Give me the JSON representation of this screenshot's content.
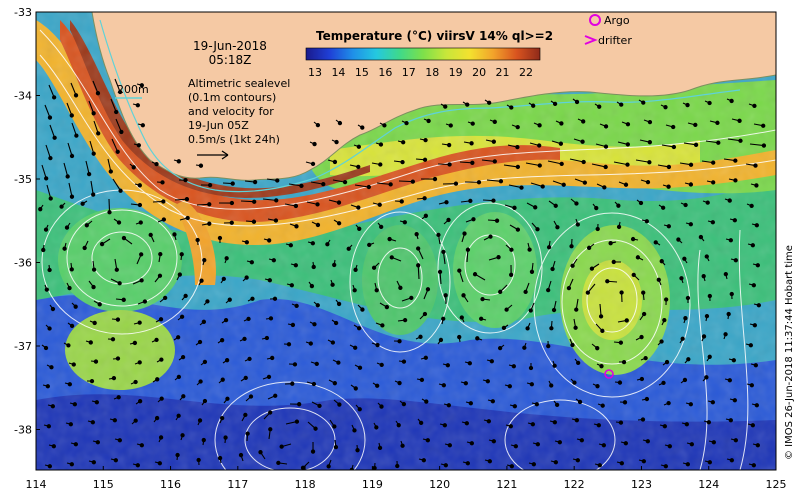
{
  "title": "Temperature (°C) viirsV 14% ql>=2",
  "datetime": {
    "date": "19-Jun-2018",
    "time": "05:18Z"
  },
  "depth_contour_label": "200m",
  "annotation_lines": [
    "Altimetric sealevel",
    "(0.1m contours)",
    "and velocity for",
    "19-Jun 05Z",
    "0.5m/s (1kt 24h)"
  ],
  "legend": {
    "argo_label": "Argo",
    "drifter_label": "drifter"
  },
  "colorbar": {
    "ticks": [
      "13",
      "14",
      "15",
      "16",
      "17",
      "18",
      "19",
      "20",
      "21",
      "22"
    ],
    "colors": [
      "#1a1a8c",
      "#1f3fd6",
      "#1f8fe8",
      "#24c8e0",
      "#3fd98a",
      "#7de04a",
      "#c8e63a",
      "#f3e12f",
      "#f2a32b",
      "#d9541f",
      "#8f2a1a"
    ]
  },
  "x_ticks": [
    "114",
    "115",
    "116",
    "117",
    "118",
    "119",
    "120",
    "121",
    "122",
    "123",
    "124",
    "125"
  ],
  "y_ticks": [
    "-33",
    "-34",
    "-35",
    "-36",
    "-37",
    "-38"
  ],
  "credit": "© IMOS 26-Jun-2018 11:37:44 Hobart time",
  "colors": {
    "land": "#f5c9a4",
    "deep": "#1e40c8",
    "warm": "#c85a25",
    "contour": "#ffffff",
    "marker": "#e000e0"
  }
}
